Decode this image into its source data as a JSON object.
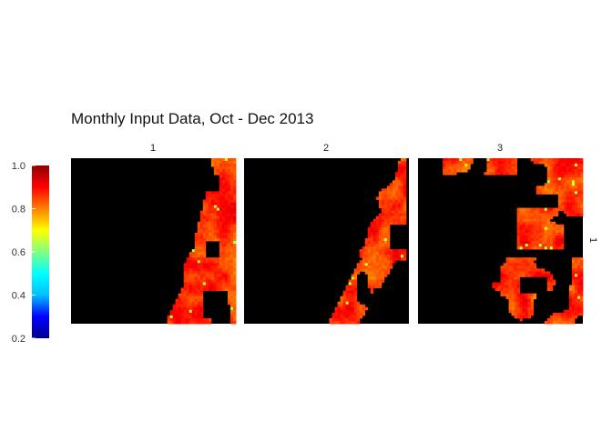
{
  "chart_data": {
    "type": "heatmap",
    "title": "Monthly Input Data, Oct - Dec 2013",
    "panels": [
      "1",
      "2",
      "3"
    ],
    "row_strip": "1",
    "colorbar": {
      "min": 0.2,
      "max": 1.0,
      "ticks": [
        "1.0",
        "0.8",
        "0.6",
        "0.4",
        "0.2"
      ],
      "tick_values": [
        1.0,
        0.8,
        0.6,
        0.4,
        0.2
      ],
      "colors": [
        "#00008f",
        "#0000ff",
        "#00bfff",
        "#00ffff",
        "#80ff80",
        "#ffff00",
        "#ff8000",
        "#ff0000",
        "#8f0000"
      ]
    },
    "missing_color": "#000000",
    "grid": false,
    "legend": "left",
    "value_range_observed": [
      0.55,
      0.95
    ]
  }
}
